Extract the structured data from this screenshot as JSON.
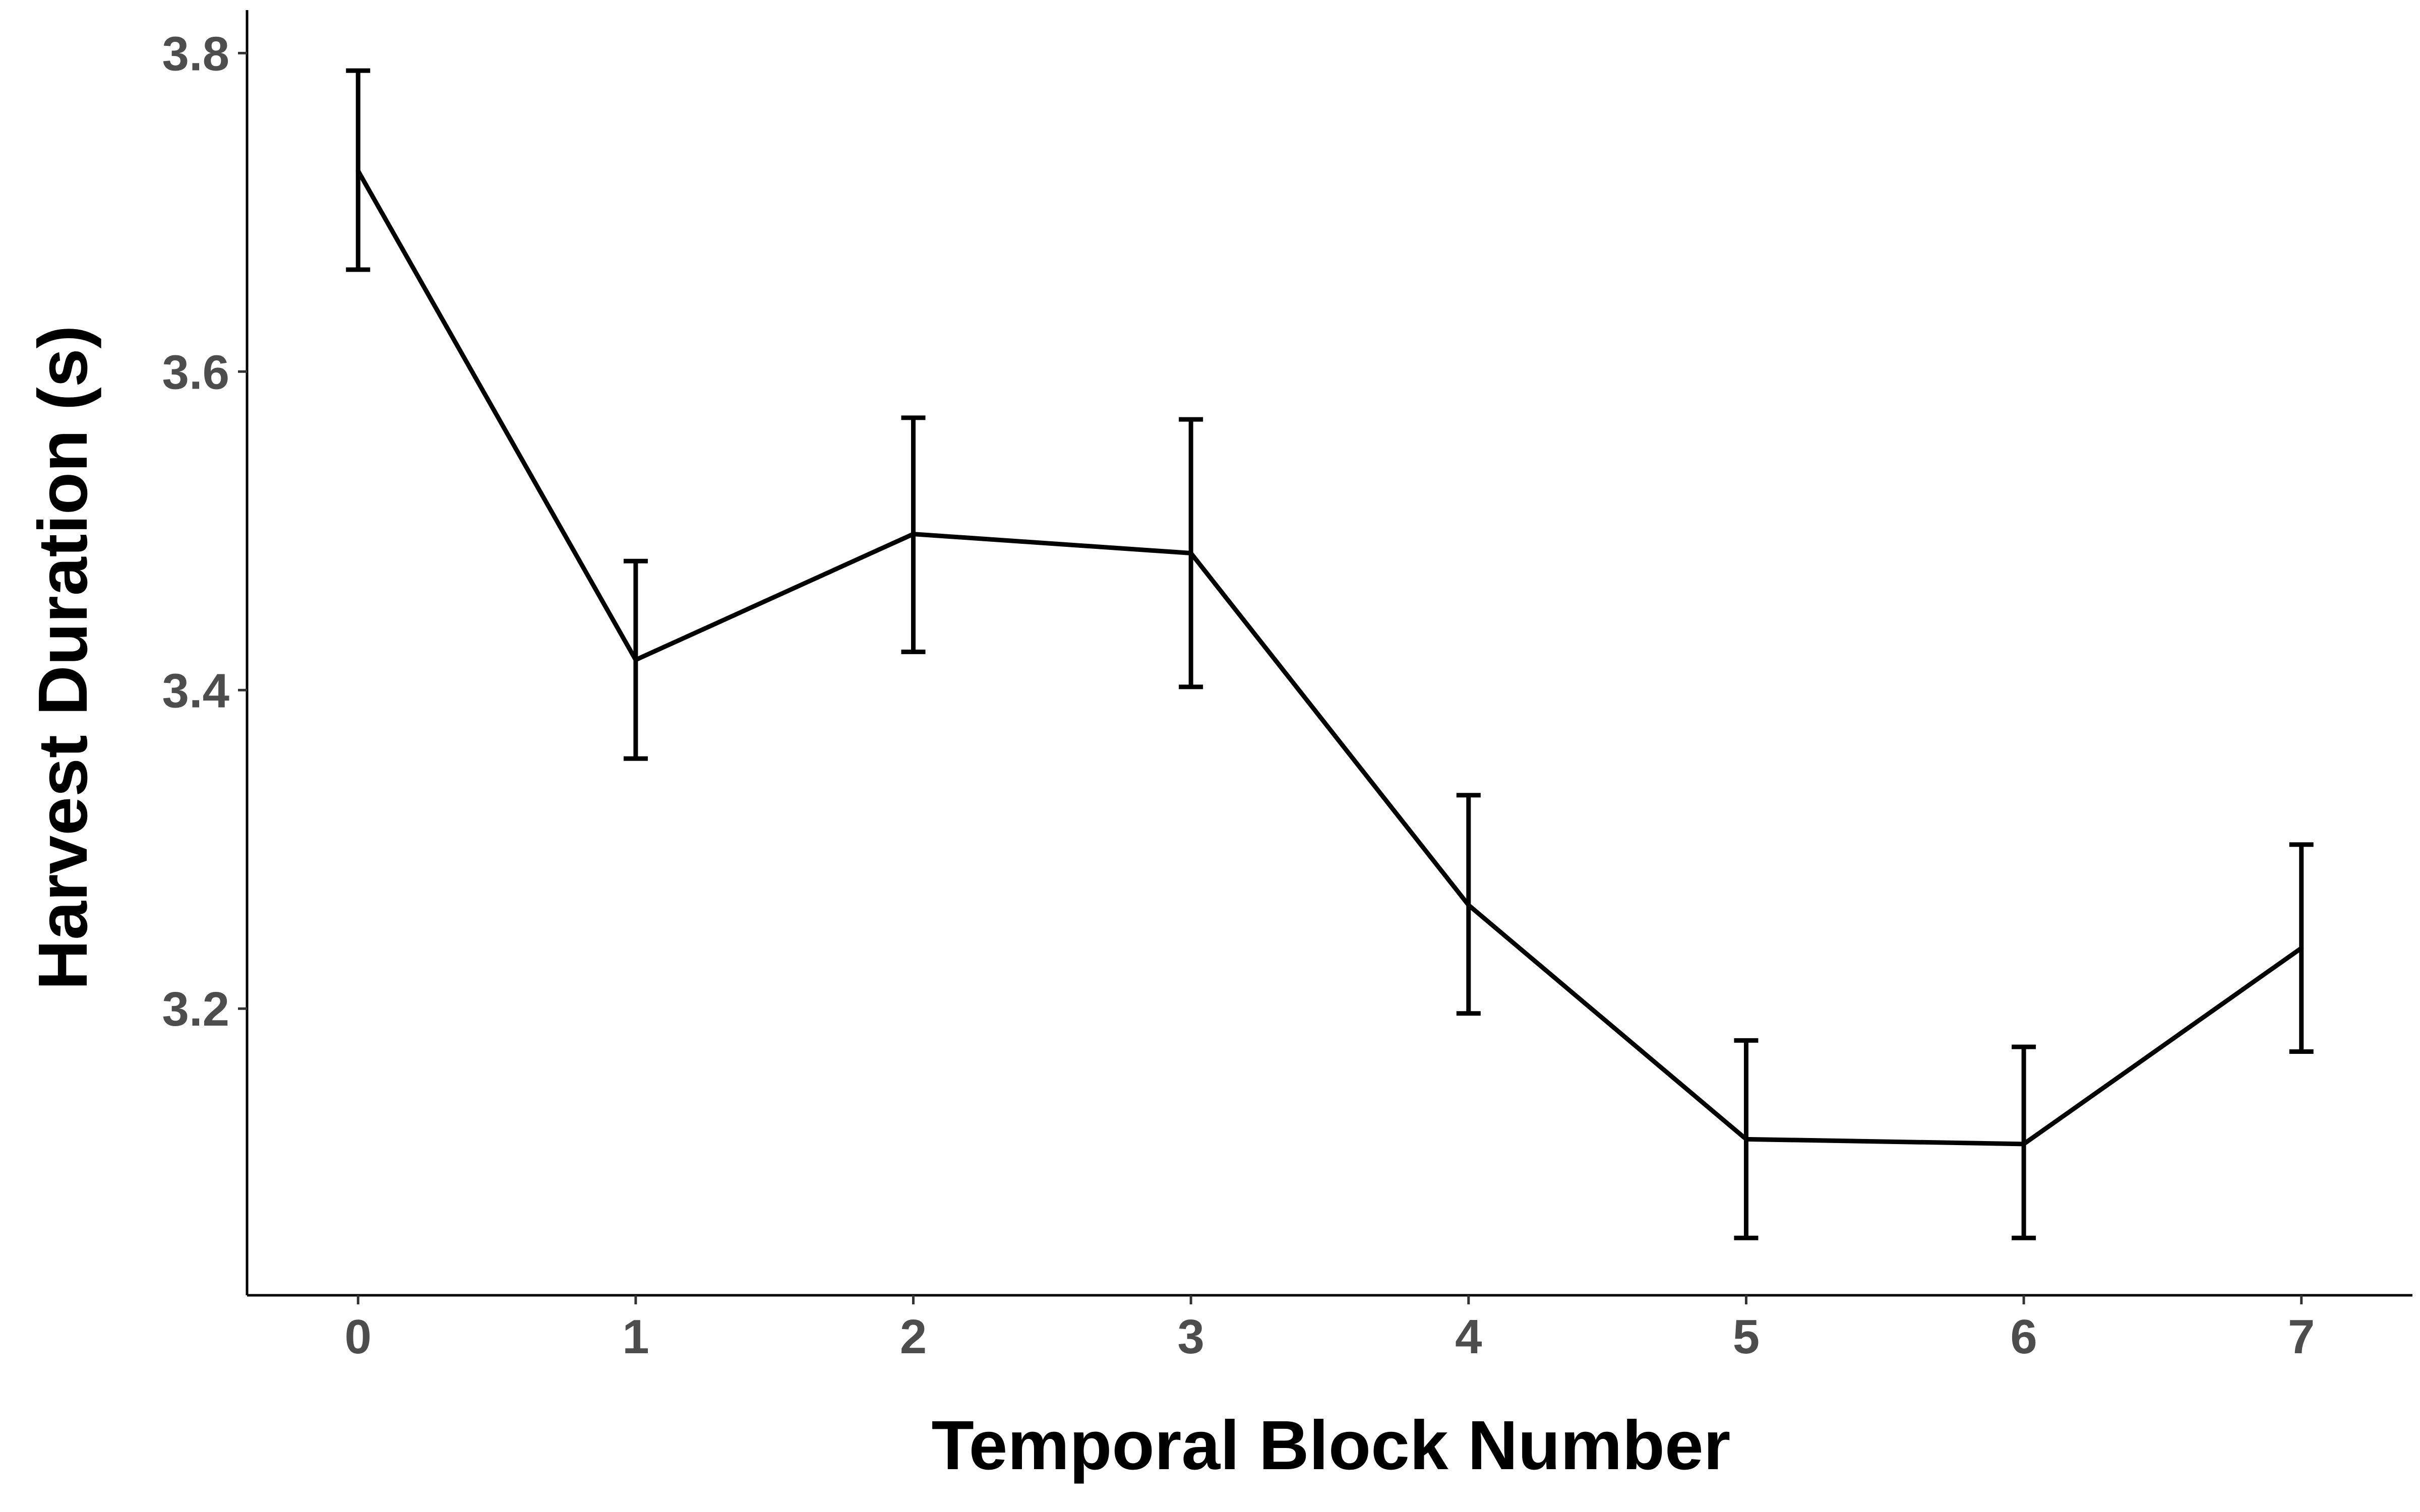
{
  "chart_data": {
    "type": "line",
    "title": "",
    "xlabel": "Temporal Block Number",
    "ylabel": "Harvest Duration (s)",
    "x": [
      0,
      1,
      2,
      3,
      4,
      5,
      6,
      7
    ],
    "x_tick_labels": [
      "0",
      "1",
      "2",
      "3",
      "4",
      "5",
      "6",
      "7"
    ],
    "y_ticks": [
      3.2,
      3.4,
      3.6,
      3.8
    ],
    "y_tick_labels": [
      "3.2",
      "3.4",
      "3.6",
      "3.8"
    ],
    "xlim": [
      -0.4,
      7.4
    ],
    "ylim": [
      3.02,
      3.827
    ],
    "grid": false,
    "series": [
      {
        "values": [
          3.726,
          3.419,
          3.498,
          3.486,
          3.265,
          3.118,
          3.115,
          3.238
        ],
        "error_lower": [
          3.664,
          3.357,
          3.424,
          3.402,
          3.197,
          3.056,
          3.056,
          3.173
        ],
        "error_upper": [
          3.789,
          3.481,
          3.571,
          3.57,
          3.334,
          3.18,
          3.176,
          3.303
        ]
      }
    ]
  }
}
